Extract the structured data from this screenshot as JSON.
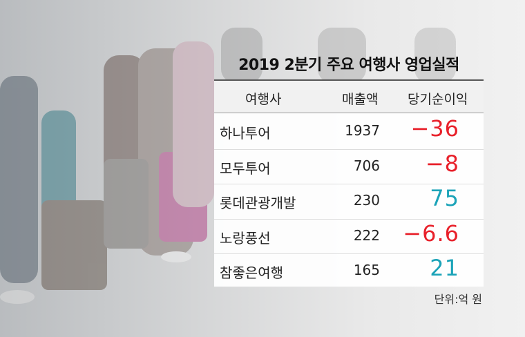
{
  "title": "2019 2분기 주요 여행사 영업실적",
  "table": {
    "header": [
      "여행사",
      "매출액",
      "당기순이익"
    ],
    "rows": [
      [
        "하나투어",
        "1937",
        "−36"
      ],
      [
        "모두투어",
        "706",
        "−8"
      ],
      [
        "롯데관광개발",
        "230",
        "75"
      ],
      [
        "노랑풍선",
        "222",
        "−6.6"
      ],
      [
        "참좋은여행",
        "165",
        "21"
      ]
    ]
  },
  "unit_note": "단위:억 원"
}
